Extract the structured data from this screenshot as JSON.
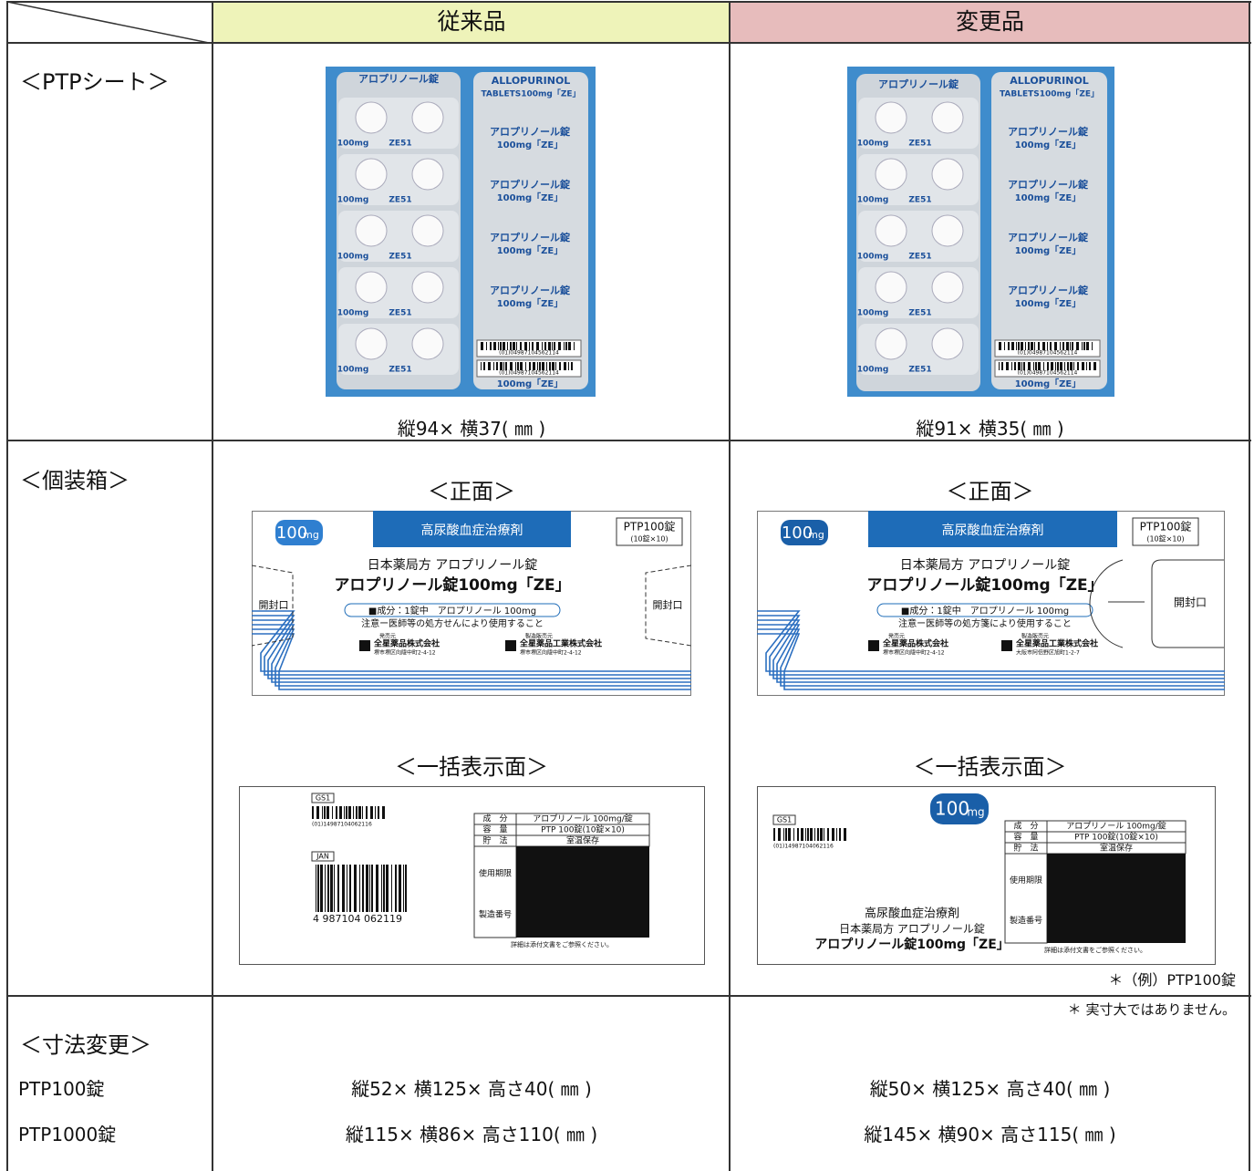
{
  "header": {
    "old": "従来品",
    "new": "変更品"
  },
  "ptp_sheet": {
    "label": "＜PTPシート＞",
    "old": {
      "size": "縦94× 横37( ㎜ )"
    },
    "new": {
      "size": "縦91× 横35( ㎜ )"
    },
    "print": {
      "strength": "100mg",
      "code": "ZE51",
      "name": "アロプリノール錠",
      "name_strength": "100mg「ZE」",
      "english": "ALLOPURINOL",
      "english_strength": "TABLETS100mg「ZE」",
      "barcode": "(01)04987104562114"
    }
  },
  "box": {
    "label": "＜個装箱＞",
    "front_label": "＜正面＞",
    "bulk_label": "＜一括表示面＞",
    "old": {
      "front": {
        "badge_number": "100",
        "badge_unit": "mg",
        "category": "高尿酸血症治療剤",
        "pack": "PTP100錠",
        "pack_detail": "(10錠×10)",
        "jp": "日本薬局方 アロプリノール錠",
        "brand": "アロプリノール錠100mg「ZE」",
        "ingredient": "■成分：1錠中　アロプリノール 100mg",
        "caution": "注意ー医師等の処方せんにより使用すること",
        "open": "開封口",
        "seller_role": "発売元",
        "seller": "全星薬品株式会社",
        "seller_addr": "堺市堺区向陵中町2-4-12",
        "maker_role": "製造販売元",
        "maker": "全星薬品工業株式会社",
        "maker_addr": "堺市堺区向陵中町2-4-12"
      },
      "bulk": {
        "gs1": "GS1",
        "gs1_code": "(01)14987104062116",
        "jan": "JAN",
        "jan_code": "4 987104 062119",
        "table": [
          [
            "成　分",
            "アロプリノール 100mg/錠"
          ],
          [
            "容　量",
            "PTP 100錠(10錠×10)"
          ],
          [
            "貯　法",
            "室温保存"
          ]
        ],
        "expiry": "使用期限",
        "lot": "製造番号",
        "footnote": "詳細は添付文書をご参照ください。"
      }
    },
    "new": {
      "front": {
        "badge_number": "100",
        "badge_unit": "mg",
        "category": "高尿酸血症治療剤",
        "pack": "PTP100錠",
        "pack_detail": "(10錠×10)",
        "jp": "日本薬局方 アロプリノール錠",
        "brand": "アロプリノール錠100mg「ZE」",
        "ingredient": "■成分：1錠中　アロプリノール 100mg",
        "caution": "注意ー医師等の処方箋により使用すること",
        "open": "開封口",
        "seller_role": "発売元",
        "seller": "全星薬品株式会社",
        "seller_addr": "堺市堺区向陵中町2-4-12",
        "maker_role": "製造販売元",
        "maker": "全星薬品工業株式会社",
        "maker_addr": "大阪市阿倍野区旭町1-2-7"
      },
      "bulk": {
        "gs1": "GS1",
        "gs1_code": "(01)14987104062116",
        "badge_number": "100",
        "badge_unit": "mg",
        "category": "高尿酸血症治療剤",
        "jp": "日本薬局方 アロプリノール錠",
        "brand": "アロプリノール錠100mg「ZE」",
        "table": [
          [
            "成　分",
            "アロプリノール 100mg/錠"
          ],
          [
            "容　量",
            "PTP 100錠(10錠×10)"
          ],
          [
            "貯　法",
            "室温保存"
          ]
        ],
        "expiry": "使用期限",
        "lot": "製造番号",
        "footnote": "詳細は添付文書をご参照ください。"
      }
    }
  },
  "notes": [
    "＊（例）PTP100錠",
    "＊ 実寸大ではありません。"
  ],
  "dimensions": {
    "label": "＜寸法変更＞",
    "rows": [
      {
        "name": "PTP100錠",
        "old": "縦52× 横125× 高さ40( ㎜ )",
        "new": "縦50× 横125× 高さ40( ㎜ )"
      },
      {
        "name": "PTP1000錠",
        "old": "縦115× 横86× 高さ110( ㎜ )",
        "new": "縦145× 横90× 高さ115( ㎜ )"
      }
    ]
  }
}
